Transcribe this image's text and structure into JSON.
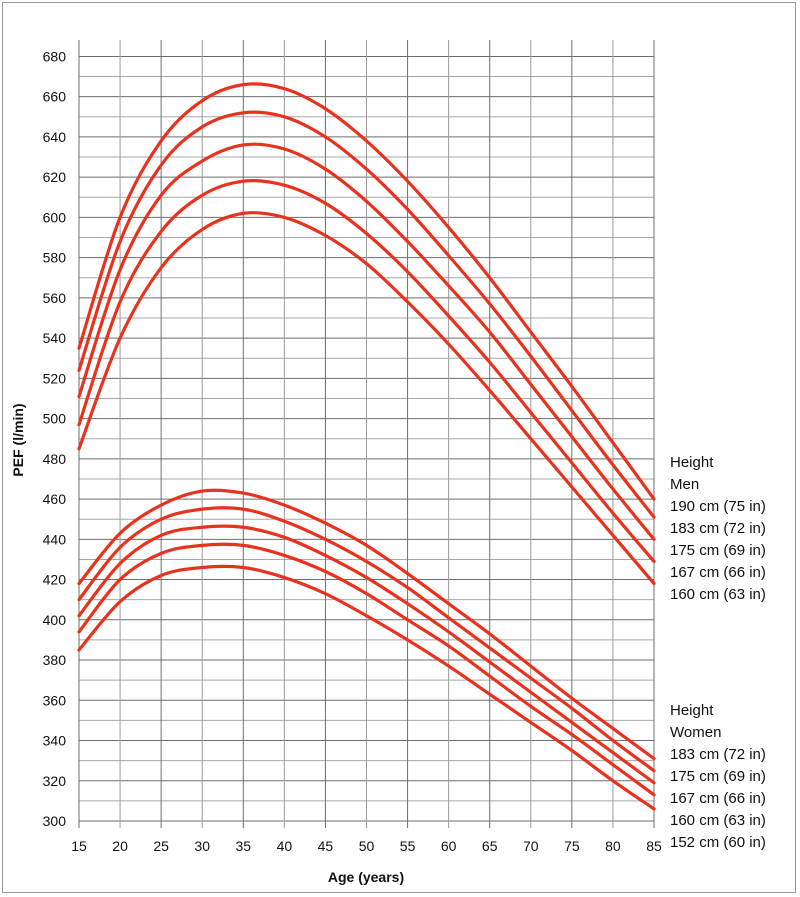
{
  "chart_data": {
    "type": "line",
    "title": "",
    "xlabel": "Age (years)",
    "ylabel": "PEF (l/min)",
    "xlim": [
      15,
      85
    ],
    "ylim": [
      300,
      680
    ],
    "x_ticks": [
      15,
      20,
      25,
      30,
      35,
      40,
      45,
      50,
      55,
      60,
      65,
      70,
      75,
      80,
      85
    ],
    "y_ticks": [
      300,
      320,
      340,
      360,
      380,
      400,
      420,
      440,
      460,
      480,
      500,
      520,
      540,
      560,
      580,
      600,
      620,
      640,
      660,
      680
    ],
    "grid": true,
    "grid_minor_y_step": 10,
    "line_color": "#e8321e",
    "x": [
      15,
      20,
      25,
      30,
      35,
      40,
      45,
      50,
      55,
      60,
      65,
      70,
      75,
      80,
      85
    ],
    "series": [
      {
        "name": "Men 190 cm (75 in)",
        "values": [
          535,
          600,
          638,
          658,
          666,
          664,
          654,
          638,
          618,
          595,
          570,
          543,
          516,
          488,
          460
        ]
      },
      {
        "name": "Men 183 cm (72 in)",
        "values": [
          524,
          588,
          626,
          645,
          652,
          650,
          640,
          624,
          604,
          581,
          557,
          531,
          504,
          477,
          451
        ]
      },
      {
        "name": "Men 175 cm (69 in)",
        "values": [
          511,
          574,
          611,
          628,
          636,
          634,
          624,
          608,
          588,
          566,
          543,
          517,
          491,
          465,
          440
        ]
      },
      {
        "name": "Men 167 cm (66 in)",
        "values": [
          497,
          558,
          593,
          611,
          618,
          616,
          607,
          592,
          573,
          551,
          528,
          503,
          478,
          453,
          429
        ]
      },
      {
        "name": "Men 160 cm (63 in)",
        "values": [
          485,
          540,
          575,
          594,
          602,
          600,
          591,
          577,
          558,
          537,
          514,
          490,
          466,
          442,
          418
        ]
      },
      {
        "name": "Women 183 cm (72 in)",
        "values": [
          418,
          443,
          457,
          464,
          463,
          457,
          448,
          437,
          423,
          408,
          393,
          377,
          361,
          346,
          331
        ]
      },
      {
        "name": "Women 175 cm (69 in)",
        "values": [
          410,
          436,
          450,
          455,
          455,
          449,
          440,
          429,
          416,
          401,
          386,
          371,
          356,
          340,
          325
        ]
      },
      {
        "name": "Women 167 cm (66 in)",
        "values": [
          402,
          428,
          442,
          446,
          446,
          441,
          432,
          421,
          408,
          394,
          379,
          364,
          349,
          334,
          319
        ]
      },
      {
        "name": "Women 160 cm (63 in)",
        "values": [
          394,
          420,
          433,
          437,
          437,
          432,
          424,
          413,
          400,
          387,
          372,
          357,
          343,
          328,
          313
        ]
      },
      {
        "name": "Women 152 cm (60 in)",
        "values": [
          385,
          409,
          422,
          426,
          426,
          421,
          413,
          402,
          390,
          377,
          363,
          349,
          335,
          320,
          306
        ]
      }
    ],
    "legend": {
      "placement": "right",
      "men": {
        "title": "Height",
        "group": "Men",
        "items": [
          "190 cm (75 in)",
          "183 cm (72 in)",
          "175 cm (69 in)",
          "167 cm (66 in)",
          "160 cm (63 in)"
        ]
      },
      "women": {
        "title": "Height",
        "group": "Women",
        "items": [
          "183 cm (72 in)",
          "175 cm (69 in)",
          "167 cm (66 in)",
          "160 cm (63 in)",
          "152 cm (60 in)"
        ]
      }
    }
  }
}
